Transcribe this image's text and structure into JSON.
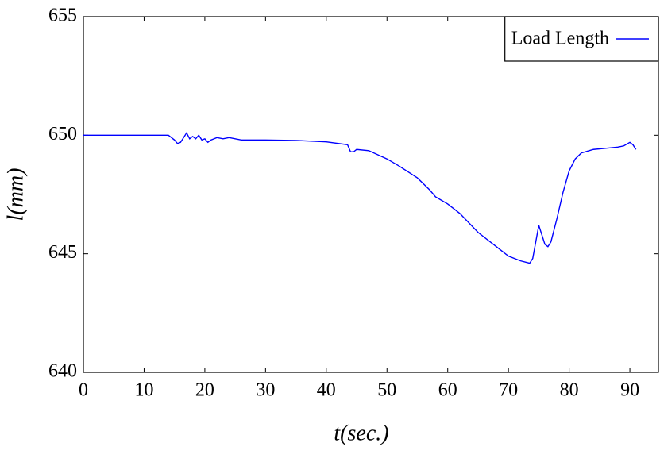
{
  "chart_data": {
    "type": "line",
    "x_label": "t(sec.)",
    "y_label": "l(mm)",
    "x": [
      0,
      14,
      15,
      15.5,
      16,
      16.5,
      17,
      17.5,
      18,
      18.5,
      19,
      19.5,
      20,
      20.5,
      21,
      22,
      23,
      24,
      25,
      26,
      30,
      35,
      40,
      43.5,
      44,
      44.5,
      45,
      47,
      50,
      52,
      55,
      57,
      58,
      60,
      62,
      65,
      68,
      70,
      72,
      73.5,
      74,
      74.5,
      75,
      75.5,
      76,
      76.5,
      77,
      78,
      79,
      80,
      81,
      82,
      84,
      86,
      88,
      89,
      90,
      90.5,
      91
    ],
    "series": [
      {
        "name": "Load Length",
        "color": "#0000ff",
        "values": [
          650,
          650,
          649.8,
          649.65,
          649.7,
          649.9,
          650.1,
          649.85,
          649.95,
          649.85,
          650,
          649.8,
          649.85,
          649.7,
          649.8,
          649.9,
          649.85,
          649.9,
          649.85,
          649.8,
          649.8,
          649.78,
          649.72,
          649.6,
          649.3,
          649.3,
          649.4,
          649.35,
          649.0,
          648.7,
          648.2,
          647.7,
          647.4,
          647.1,
          646.7,
          645.9,
          645.3,
          644.9,
          644.7,
          644.6,
          644.8,
          645.5,
          646.2,
          645.8,
          645.4,
          645.3,
          645.5,
          646.5,
          647.6,
          648.5,
          649.0,
          649.25,
          649.4,
          649.45,
          649.5,
          649.55,
          649.7,
          649.6,
          649.4
        ]
      }
    ],
    "xlim": [
      0,
      94.7
    ],
    "xticks": [
      0,
      10,
      20,
      30,
      40,
      50,
      60,
      70,
      80,
      90
    ],
    "ylim": [
      640,
      655
    ],
    "yticks": [
      640,
      645,
      650,
      655
    ],
    "legend": "upper right"
  }
}
